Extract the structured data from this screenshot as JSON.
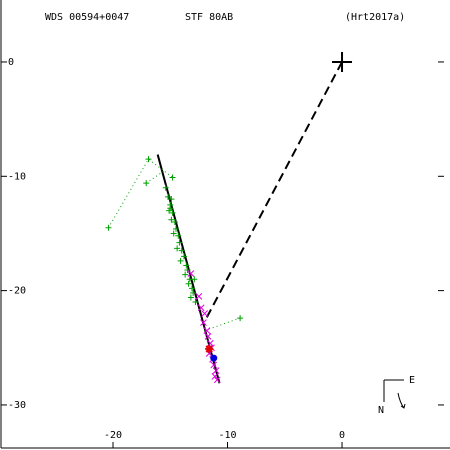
{
  "chart_data": {
    "type": "scatter",
    "header": {
      "left": "WDS 00594+0047",
      "center": "STF  80AB",
      "right": "(Hrt2017a)"
    },
    "compass": {
      "east": "E",
      "north": "N"
    },
    "xlim": [
      -29.87,
      9.43
    ],
    "ylim": [
      -33.94,
      5.42
    ],
    "xticks": [
      -20,
      -10,
      0
    ],
    "yticks": [
      0,
      -10,
      -20,
      -30
    ],
    "series": [
      {
        "color": "#00a000",
        "marker": "plus",
        "x": [
          -15.4,
          -15.2,
          -15.0,
          -15.1,
          -14.8,
          -14.9,
          -14.6,
          -14.5,
          -14.7,
          -14.3,
          -14.2,
          -14.4,
          -14.0,
          -13.8,
          -14.1,
          -13.6,
          -13.5,
          -13.7,
          -13.3,
          -13.4,
          -13.1,
          -13.0,
          -13.2,
          -12.8,
          -12.9,
          -14.9,
          -15.0,
          -20.4,
          -16.9,
          -17.1,
          -8.9,
          -14.8
        ],
        "y": [
          -11.0,
          -11.8,
          -12.5,
          -13.0,
          -13.2,
          -13.8,
          -14.0,
          -14.6,
          -15.0,
          -15.2,
          -15.8,
          -16.3,
          -16.5,
          -17.0,
          -17.4,
          -17.8,
          -18.2,
          -18.6,
          -19.0,
          -19.4,
          -19.8,
          -20.2,
          -20.6,
          -21.0,
          -19.0,
          -12.0,
          -12.8,
          -14.5,
          -8.5,
          -10.6,
          -22.4,
          -10.1
        ]
      },
      {
        "color": "#e000e0",
        "marker": "cross",
        "x": [
          -12.5,
          -12.3,
          -12.0,
          -12.1,
          -11.8,
          -11.7,
          -11.5,
          -11.6,
          -11.3,
          -11.2,
          -11.0,
          -11.1,
          -10.9,
          -11.4,
          -13.2
        ],
        "y": [
          -20.5,
          -21.5,
          -22.0,
          -22.8,
          -23.5,
          -24.0,
          -24.6,
          -25.5,
          -26.0,
          -26.5,
          -27.0,
          -27.5,
          -27.8,
          -25.0,
          -18.5
        ]
      },
      {
        "color": "#e00000",
        "marker": "star",
        "x": [
          -11.6
        ],
        "y": [
          -25.1
        ]
      },
      {
        "color": "#0000e0",
        "marker": "dot",
        "x": [
          -11.2
        ],
        "y": [
          -25.9
        ]
      },
      {
        "color": "#000000",
        "marker": "bigplus",
        "x": [
          0
        ],
        "y": [
          0
        ]
      }
    ],
    "lines": [
      {
        "color": "#000000",
        "dash": "solid",
        "x": [
          -16.1,
          -10.7
        ],
        "y": [
          -8.1,
          -28.1
        ]
      },
      {
        "color": "#000000",
        "dash": "dashed",
        "x": [
          0,
          -12.0
        ],
        "y": [
          0,
          -22.7
        ]
      },
      {
        "color": "#00a000",
        "dash": "dotted",
        "x": [
          -20.4,
          -16.9,
          -14.8
        ],
        "y": [
          -14.5,
          -8.5,
          -10.1
        ]
      },
      {
        "color": "#00a000",
        "dash": "dotted",
        "x": [
          -17.1,
          -15.5
        ],
        "y": [
          -10.6,
          -9.5
        ]
      },
      {
        "color": "#00a000",
        "dash": "dotted",
        "x": [
          -8.9,
          -12.0
        ],
        "y": [
          -22.4,
          -23.5
        ]
      }
    ]
  }
}
